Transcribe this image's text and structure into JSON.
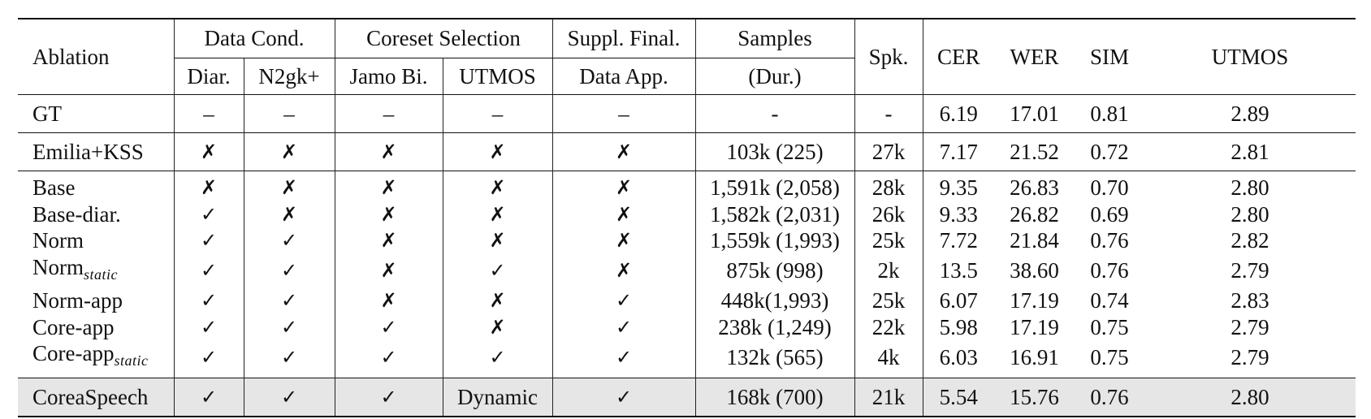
{
  "header": {
    "ablation": "Ablation",
    "data_cond": "Data Cond.",
    "coreset": "Coreset Selection",
    "suppl": "Suppl. Final.",
    "samples": "Samples",
    "spk": "Spk.",
    "cer": "CER",
    "wer": "WER",
    "sim": "SIM",
    "utmos": "UTMOS",
    "diar": "Diar.",
    "n2gk": "N2gk+",
    "jamo": "Jamo Bi.",
    "utmos_sub": "UTMOS",
    "data_app": "Data App.",
    "dur": "(Dur.)"
  },
  "rows": [
    {
      "name": "GT",
      "sub": "",
      "diar": "–",
      "n2gk": "–",
      "jamo": "–",
      "utmos_sel": "–",
      "app": "–",
      "samples": "-",
      "spk": "-",
      "cer": "6.19",
      "wer": "17.01",
      "sim": "0.81",
      "utmos": "2.89"
    },
    {
      "name": "Emilia+KSS",
      "sub": "",
      "diar": "✗",
      "n2gk": "✗",
      "jamo": "✗",
      "utmos_sel": "✗",
      "app": "✗",
      "samples": "103k (225)",
      "spk": "27k",
      "cer": "7.17",
      "wer": "21.52",
      "sim": "0.72",
      "utmos": "2.81"
    },
    {
      "name": "Base",
      "sub": "",
      "diar": "✗",
      "n2gk": "✗",
      "jamo": "✗",
      "utmos_sel": "✗",
      "app": "✗",
      "samples": "1,591k (2,058)",
      "spk": "28k",
      "cer": "9.35",
      "wer": "26.83",
      "sim": "0.70",
      "utmos": "2.80"
    },
    {
      "name": "Base-diar.",
      "sub": "",
      "diar": "✓",
      "n2gk": "✗",
      "jamo": "✗",
      "utmos_sel": "✗",
      "app": "✗",
      "samples": "1,582k (2,031)",
      "spk": "26k",
      "cer": "9.33",
      "wer": "26.82",
      "sim": "0.69",
      "utmos": "2.80"
    },
    {
      "name": "Norm",
      "sub": "",
      "diar": "✓",
      "n2gk": "✓",
      "jamo": "✗",
      "utmos_sel": "✗",
      "app": "✗",
      "samples": "1,559k (1,993)",
      "spk": "25k",
      "cer": "7.72",
      "wer": "21.84",
      "sim": "0.76",
      "utmos": "2.82"
    },
    {
      "name": "Norm",
      "sub": "static",
      "diar": "✓",
      "n2gk": "✓",
      "jamo": "✗",
      "utmos_sel": "✓",
      "app": "✗",
      "samples": "875k (998)",
      "spk": "2k",
      "cer": "13.5",
      "wer": "38.60",
      "sim": "0.76",
      "utmos": "2.79"
    },
    {
      "name": "Norm-app",
      "sub": "",
      "diar": "✓",
      "n2gk": "✓",
      "jamo": "✗",
      "utmos_sel": "✗",
      "app": "✓",
      "samples": "448k(1,993)",
      "spk": "25k",
      "cer": "6.07",
      "wer": "17.19",
      "sim": "0.74",
      "utmos": "2.83"
    },
    {
      "name": "Core-app",
      "sub": "",
      "diar": "✓",
      "n2gk": "✓",
      "jamo": "✓",
      "utmos_sel": "✗",
      "app": "✓",
      "samples": "238k (1,249)",
      "spk": "22k",
      "cer": "5.98",
      "wer": "17.19",
      "sim": "0.75",
      "utmos": "2.79"
    },
    {
      "name": "Core-app",
      "sub": "static",
      "diar": "✓",
      "n2gk": "✓",
      "jamo": "✓",
      "utmos_sel": "✓",
      "app": "✓",
      "samples": "132k (565)",
      "spk": "4k",
      "cer": "6.03",
      "wer": "16.91",
      "sim": "0.75",
      "utmos": "2.79"
    },
    {
      "name": "CoreaSpeech",
      "sub": "",
      "diar": "✓",
      "n2gk": "✓",
      "jamo": "✓",
      "utmos_sel": "Dynamic",
      "app": "✓",
      "samples": "168k (700)",
      "spk": "21k",
      "cer": "5.54",
      "wer": "15.76",
      "sim": "0.76",
      "utmos": "2.80"
    }
  ]
}
